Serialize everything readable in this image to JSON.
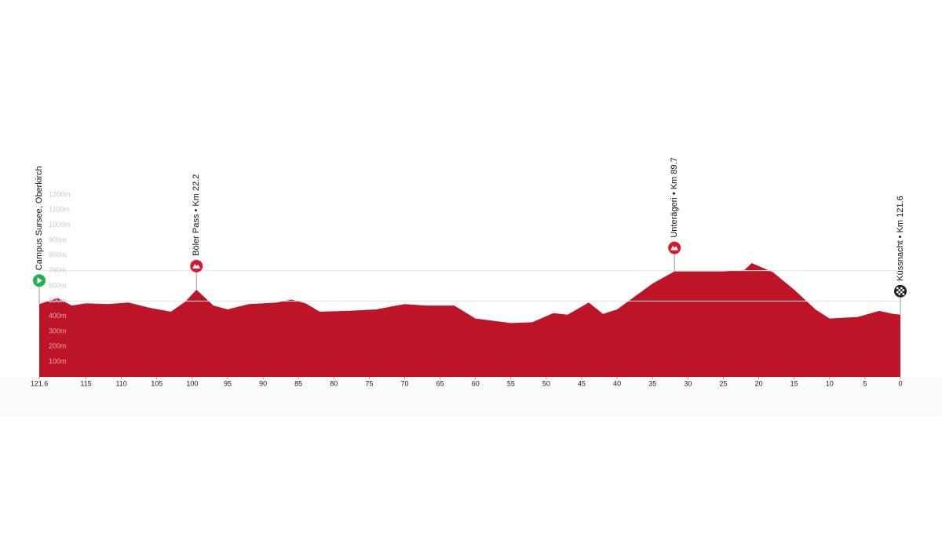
{
  "chart_data": {
    "type": "area",
    "x": [
      121.6,
      119,
      117,
      115,
      112,
      109,
      106,
      103,
      101,
      99.4,
      97,
      95,
      92,
      88,
      86,
      84,
      82,
      78,
      74,
      70,
      67,
      63,
      60,
      55,
      52,
      49,
      47,
      44,
      42,
      40,
      35,
      31.9,
      25,
      22,
      21,
      18,
      15,
      12,
      10,
      6,
      3,
      1,
      0
    ],
    "series": [
      {
        "color": "#be1428",
        "values": [
          480,
          520,
          470,
          485,
          480,
          490,
          455,
          430,
          495,
          575,
          470,
          445,
          480,
          490,
          510,
          485,
          430,
          435,
          445,
          480,
          470,
          470,
          385,
          355,
          360,
          420,
          410,
          490,
          415,
          445,
          615,
          695,
          695,
          705,
          750,
          690,
          575,
          445,
          385,
          395,
          435,
          415,
          410
        ]
      }
    ],
    "xlim": [
      121.6,
      0
    ],
    "xticks": [
      121.6,
      115,
      110,
      105,
      100,
      95,
      90,
      85,
      80,
      75,
      70,
      65,
      60,
      55,
      50,
      45,
      40,
      35,
      30,
      25,
      20,
      15,
      10,
      5,
      0
    ],
    "ylim": [
      0,
      1200
    ],
    "yticks": [
      {
        "value": 100,
        "label": "100m"
      },
      {
        "value": 200,
        "label": "200m"
      },
      {
        "value": 300,
        "label": "300m"
      },
      {
        "value": 400,
        "label": "400m"
      },
      {
        "value": 500,
        "label": "500m"
      },
      {
        "value": 600,
        "label": "600m"
      },
      {
        "value": 700,
        "label": "700m"
      },
      {
        "value": 800,
        "label": "800m"
      },
      {
        "value": 900,
        "label": "900m"
      },
      {
        "value": 1000,
        "label": "1000m"
      },
      {
        "value": 1100,
        "label": "1100m"
      },
      {
        "value": 1200,
        "label": "1200m"
      }
    ],
    "markers": [
      {
        "label": "Campus Sursee, Oberkirch",
        "kind": "start",
        "km": 121.6,
        "elevation": 480,
        "color": "#22b14c"
      },
      {
        "label": "Böler Pass • Km 22.2",
        "kind": "climb",
        "km": 99.4,
        "elevation": 575,
        "color": "#d7192d"
      },
      {
        "label": "Unterägeri • Km 89.7",
        "kind": "climb",
        "km": 31.9,
        "elevation": 695,
        "color": "#d7192d"
      },
      {
        "label": "Küssnacht • Km 121.6",
        "kind": "finish",
        "km": 0,
        "elevation": 410,
        "color": "#222222"
      }
    ]
  }
}
